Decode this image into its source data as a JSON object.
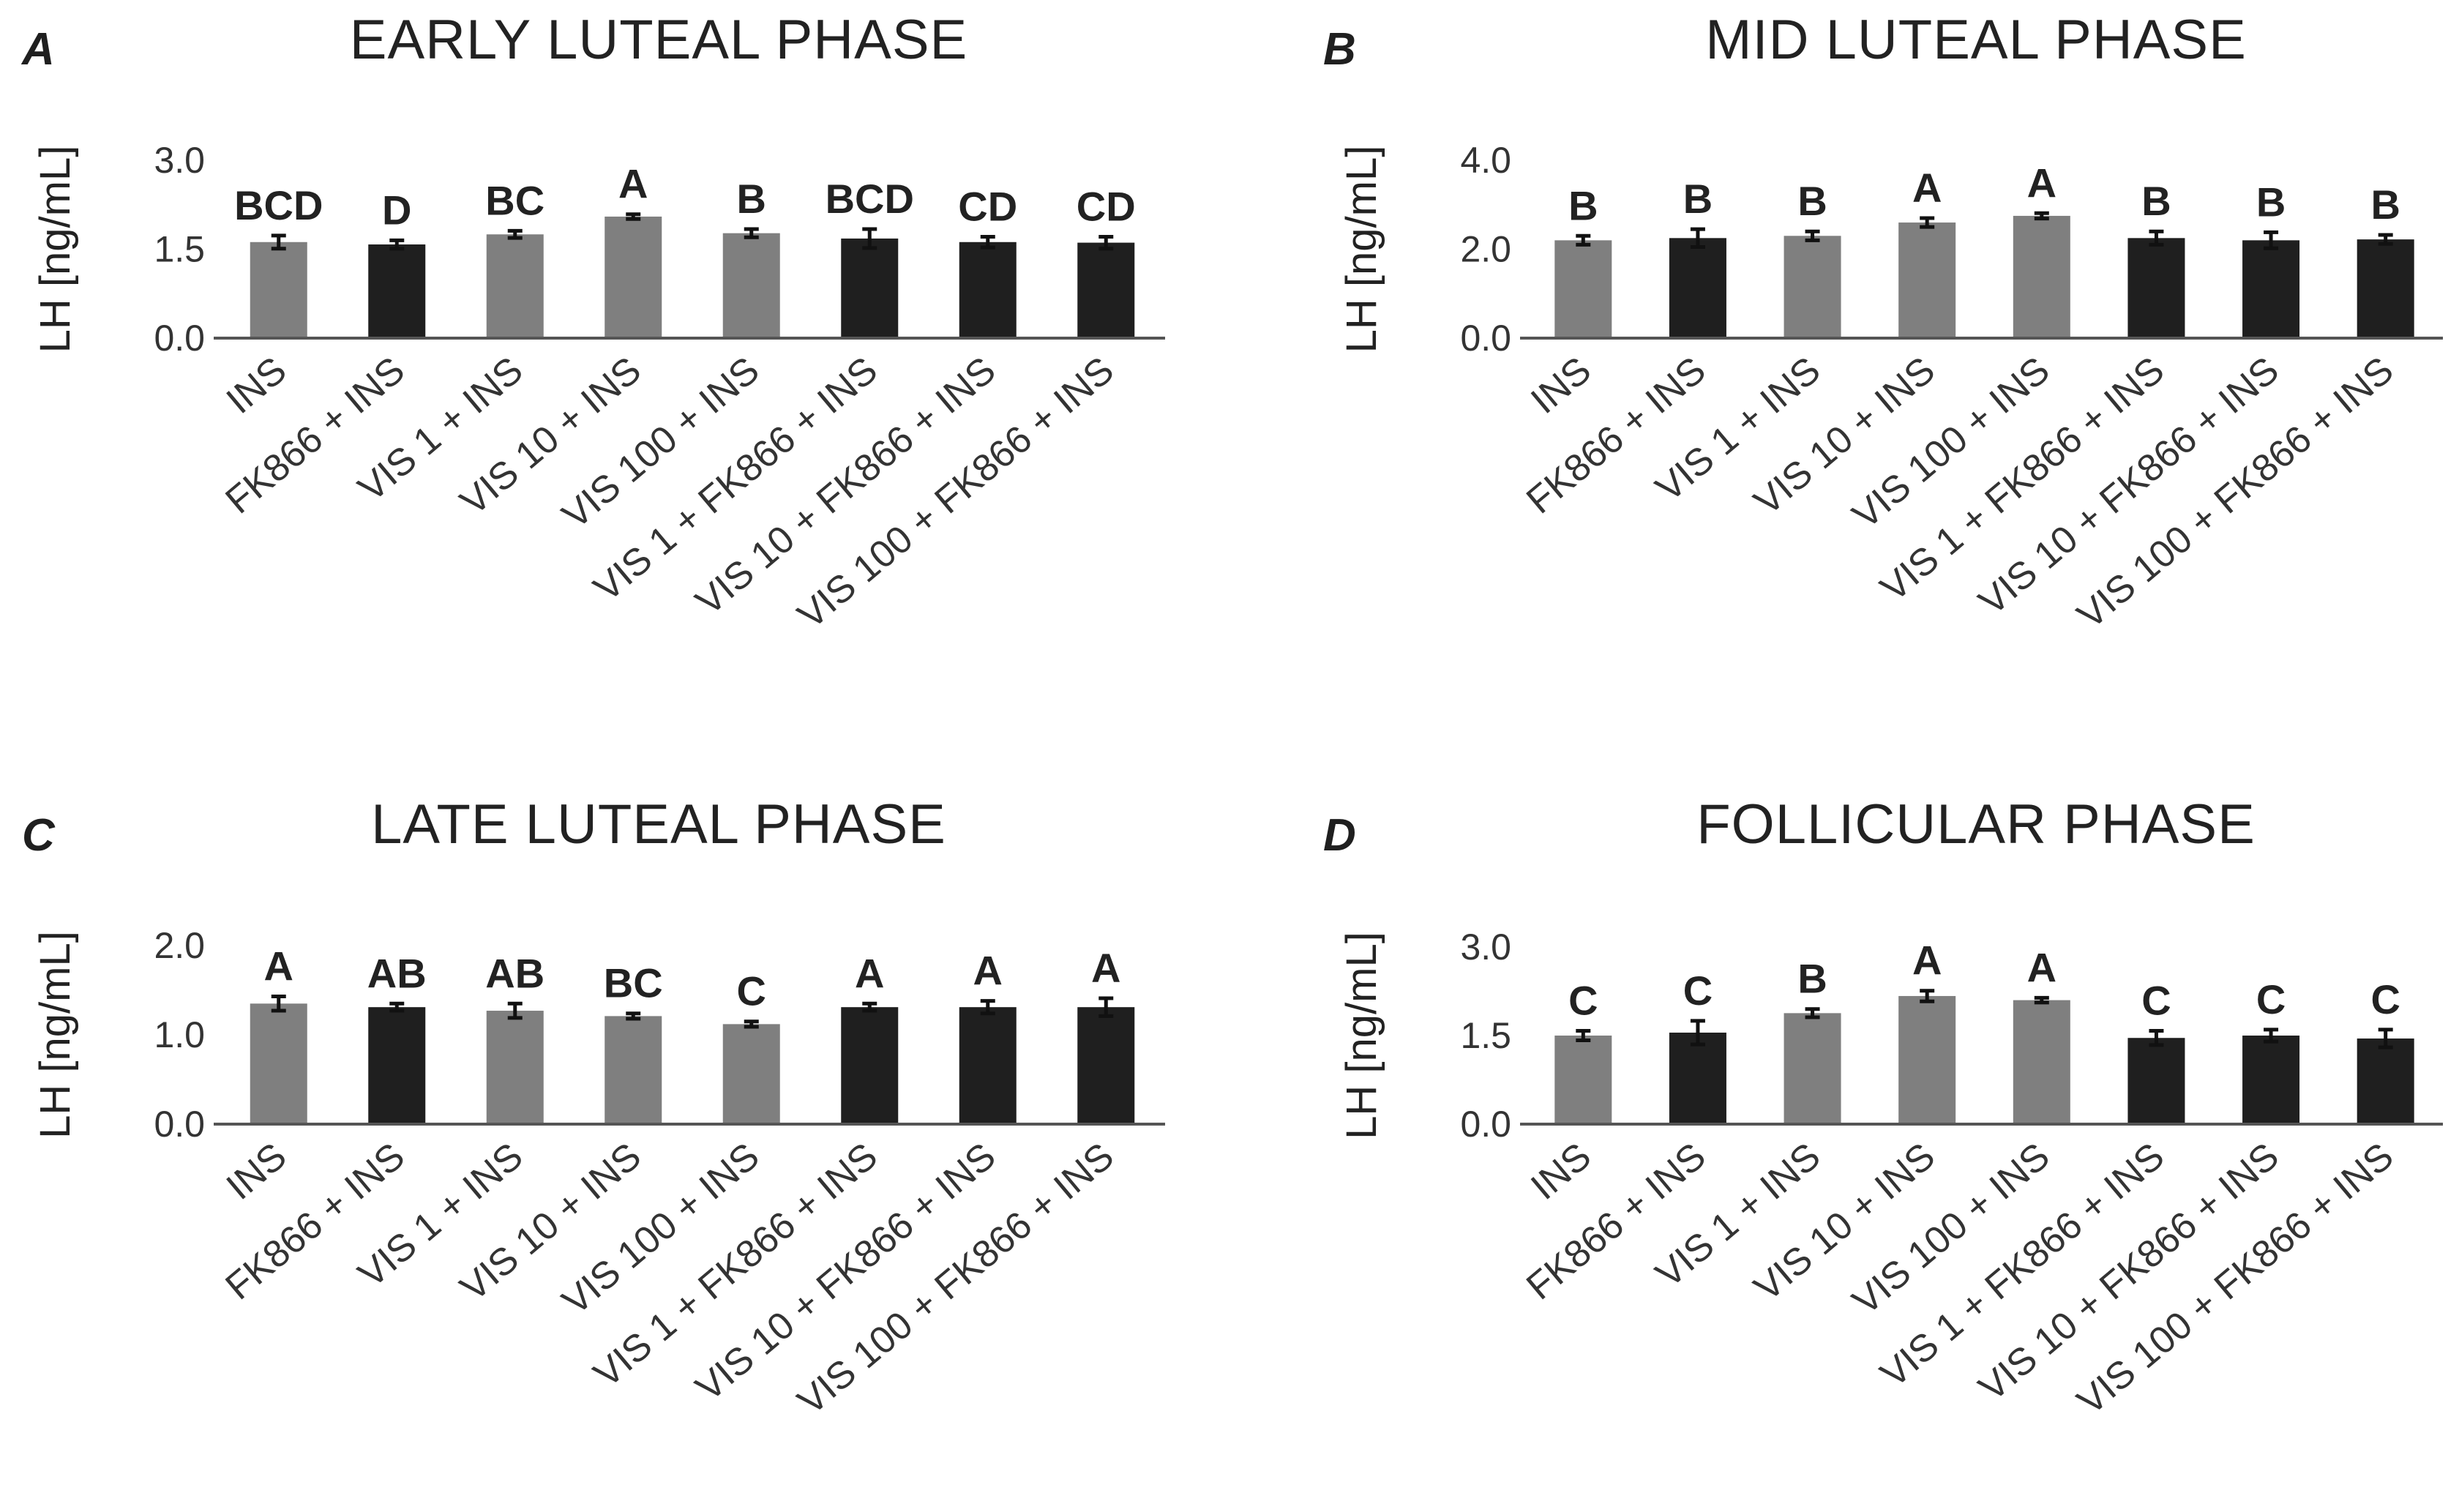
{
  "colors": {
    "gray_bar": "#7f7f7f",
    "black_bar": "#1f1f1f",
    "text": "#222222",
    "axis": "#555555"
  },
  "chart_data": [
    {
      "panel": "A",
      "type": "bar",
      "title": "EARLY LUTEAL PHASE",
      "ylabel": "LH [ng/mL]",
      "ylim": [
        0,
        3.0
      ],
      "yticks": [
        "0.0",
        "1.5",
        "3.0"
      ],
      "categories": [
        "INS",
        "FK866 + INS",
        "VIS 1 + INS",
        "VIS 10 + INS",
        "VIS 100 + INS",
        "VIS 1 + FK866 + INS",
        "VIS 10 + FK866 + INS",
        "VIS 100 + FK866 + INS"
      ],
      "values": [
        1.62,
        1.58,
        1.75,
        2.05,
        1.77,
        1.68,
        1.62,
        1.61
      ],
      "errors": [
        0.11,
        0.07,
        0.06,
        0.04,
        0.07,
        0.16,
        0.09,
        0.1
      ],
      "colors": [
        "gray",
        "black",
        "gray",
        "gray",
        "gray",
        "black",
        "black",
        "black"
      ],
      "significance": [
        "BCD",
        "D",
        "BC",
        "A",
        "B",
        "BCD",
        "CD",
        "CD"
      ],
      "grid": false
    },
    {
      "panel": "B",
      "type": "bar",
      "title": "MID LUTEAL PHASE",
      "ylabel": "LH [ng/mL]",
      "ylim": [
        0,
        4.0
      ],
      "yticks": [
        "0.0",
        "2.0",
        "4.0"
      ],
      "categories": [
        "INS",
        "FK866 + INS",
        "VIS 1 + INS",
        "VIS 10 + INS",
        "VIS 100 + INS",
        "VIS 1 + FK866 + INS",
        "VIS 10 + FK866 + INS",
        "VIS 100 + FK866 + INS"
      ],
      "values": [
        2.2,
        2.25,
        2.3,
        2.6,
        2.75,
        2.25,
        2.2,
        2.22
      ],
      "errors": [
        0.1,
        0.2,
        0.1,
        0.1,
        0.06,
        0.15,
        0.18,
        0.1
      ],
      "colors": [
        "gray",
        "black",
        "gray",
        "gray",
        "gray",
        "black",
        "black",
        "black"
      ],
      "significance": [
        "B",
        "B",
        "B",
        "A",
        "A",
        "B",
        "B",
        "B"
      ],
      "grid": false
    },
    {
      "panel": "C",
      "type": "bar",
      "title": "LATE LUTEAL PHASE",
      "ylabel": "LH [ng/mL]",
      "ylim": [
        0,
        2.0
      ],
      "yticks": [
        "0.0",
        "1.0",
        "2.0"
      ],
      "categories": [
        "INS",
        "FK866 + INS",
        "VIS 1 + INS",
        "VIS 10 + INS",
        "VIS 100 + INS",
        "VIS 1 + FK866 + INS",
        "VIS 10 + FK866 + INS",
        "VIS 100 + FK866 + INS"
      ],
      "values": [
        1.35,
        1.31,
        1.27,
        1.21,
        1.12,
        1.31,
        1.31,
        1.31
      ],
      "errors": [
        0.08,
        0.04,
        0.08,
        0.03,
        0.03,
        0.04,
        0.07,
        0.1
      ],
      "colors": [
        "gray",
        "black",
        "gray",
        "gray",
        "gray",
        "black",
        "black",
        "black"
      ],
      "significance": [
        "A",
        "AB",
        "AB",
        "BC",
        "C",
        "A",
        "A",
        "A"
      ],
      "grid": false
    },
    {
      "panel": "D",
      "type": "bar",
      "title": "FOLLICULAR PHASE",
      "ylabel": "LH [ng/mL]",
      "ylim": [
        0,
        3.0
      ],
      "yticks": [
        "0.0",
        "1.5",
        "3.0"
      ],
      "categories": [
        "INS",
        "FK866 + INS",
        "VIS 1 + INS",
        "VIS 10 + INS",
        "VIS 100 + INS",
        "VIS 1 + FK866 + INS",
        "VIS 10 + FK866 + INS",
        "VIS 100 + FK866 + INS"
      ],
      "values": [
        1.5,
        1.55,
        1.88,
        2.17,
        2.1,
        1.46,
        1.5,
        1.45
      ],
      "errors": [
        0.08,
        0.2,
        0.07,
        0.09,
        0.04,
        0.12,
        0.1,
        0.15
      ],
      "colors": [
        "gray",
        "black",
        "gray",
        "gray",
        "gray",
        "black",
        "black",
        "black"
      ],
      "significance": [
        "C",
        "C",
        "B",
        "A",
        "A",
        "C",
        "C",
        "C"
      ],
      "grid": false
    }
  ]
}
